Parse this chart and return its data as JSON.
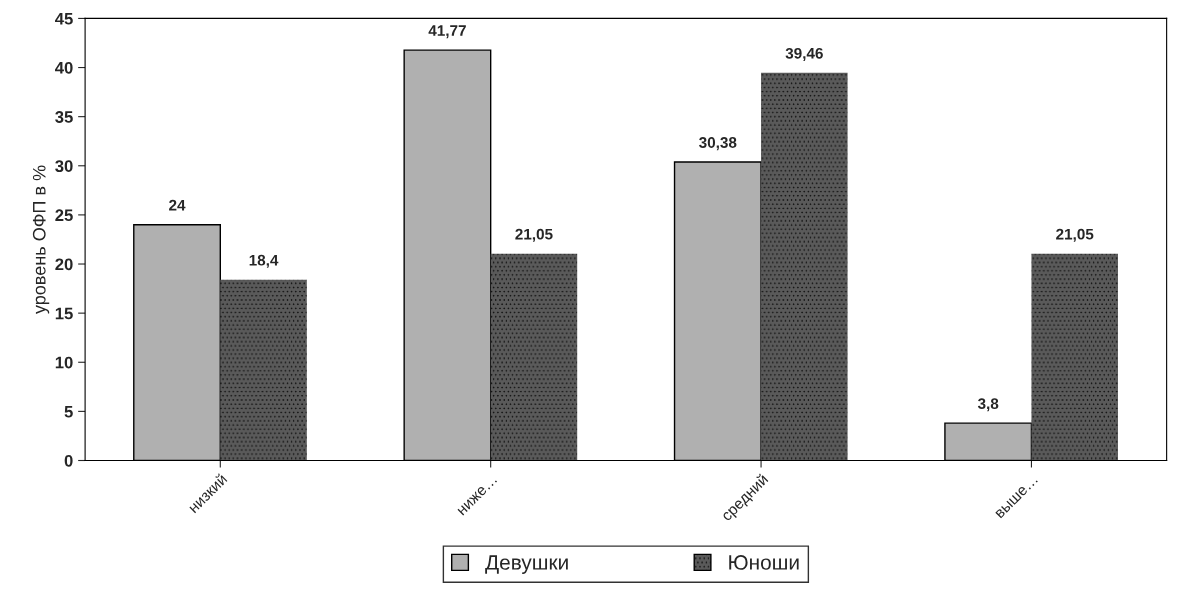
{
  "chart_data": {
    "type": "bar",
    "ylabel": "уровень ОФП в %",
    "categories": [
      "низкий",
      "ниже…",
      "средний",
      "выше…"
    ],
    "series": [
      {
        "name": "Девушки",
        "color": "#b0b0b0",
        "values": [
          24,
          41.77,
          30.38,
          3.8
        ],
        "value_labels": [
          "24",
          "41,77",
          "30,38",
          "3,8"
        ]
      },
      {
        "name": "Юноши",
        "color": "#5a5a5a",
        "values": [
          18.4,
          21.05,
          39.46,
          21.05
        ],
        "value_labels": [
          "18,4",
          "21,05",
          "39,46",
          "21,05"
        ]
      }
    ],
    "ylim": [
      0,
      45
    ],
    "yticks": [
      0,
      5,
      10,
      15,
      20,
      25,
      30,
      35,
      40,
      45
    ],
    "grid": false,
    "legend": "bottom"
  }
}
